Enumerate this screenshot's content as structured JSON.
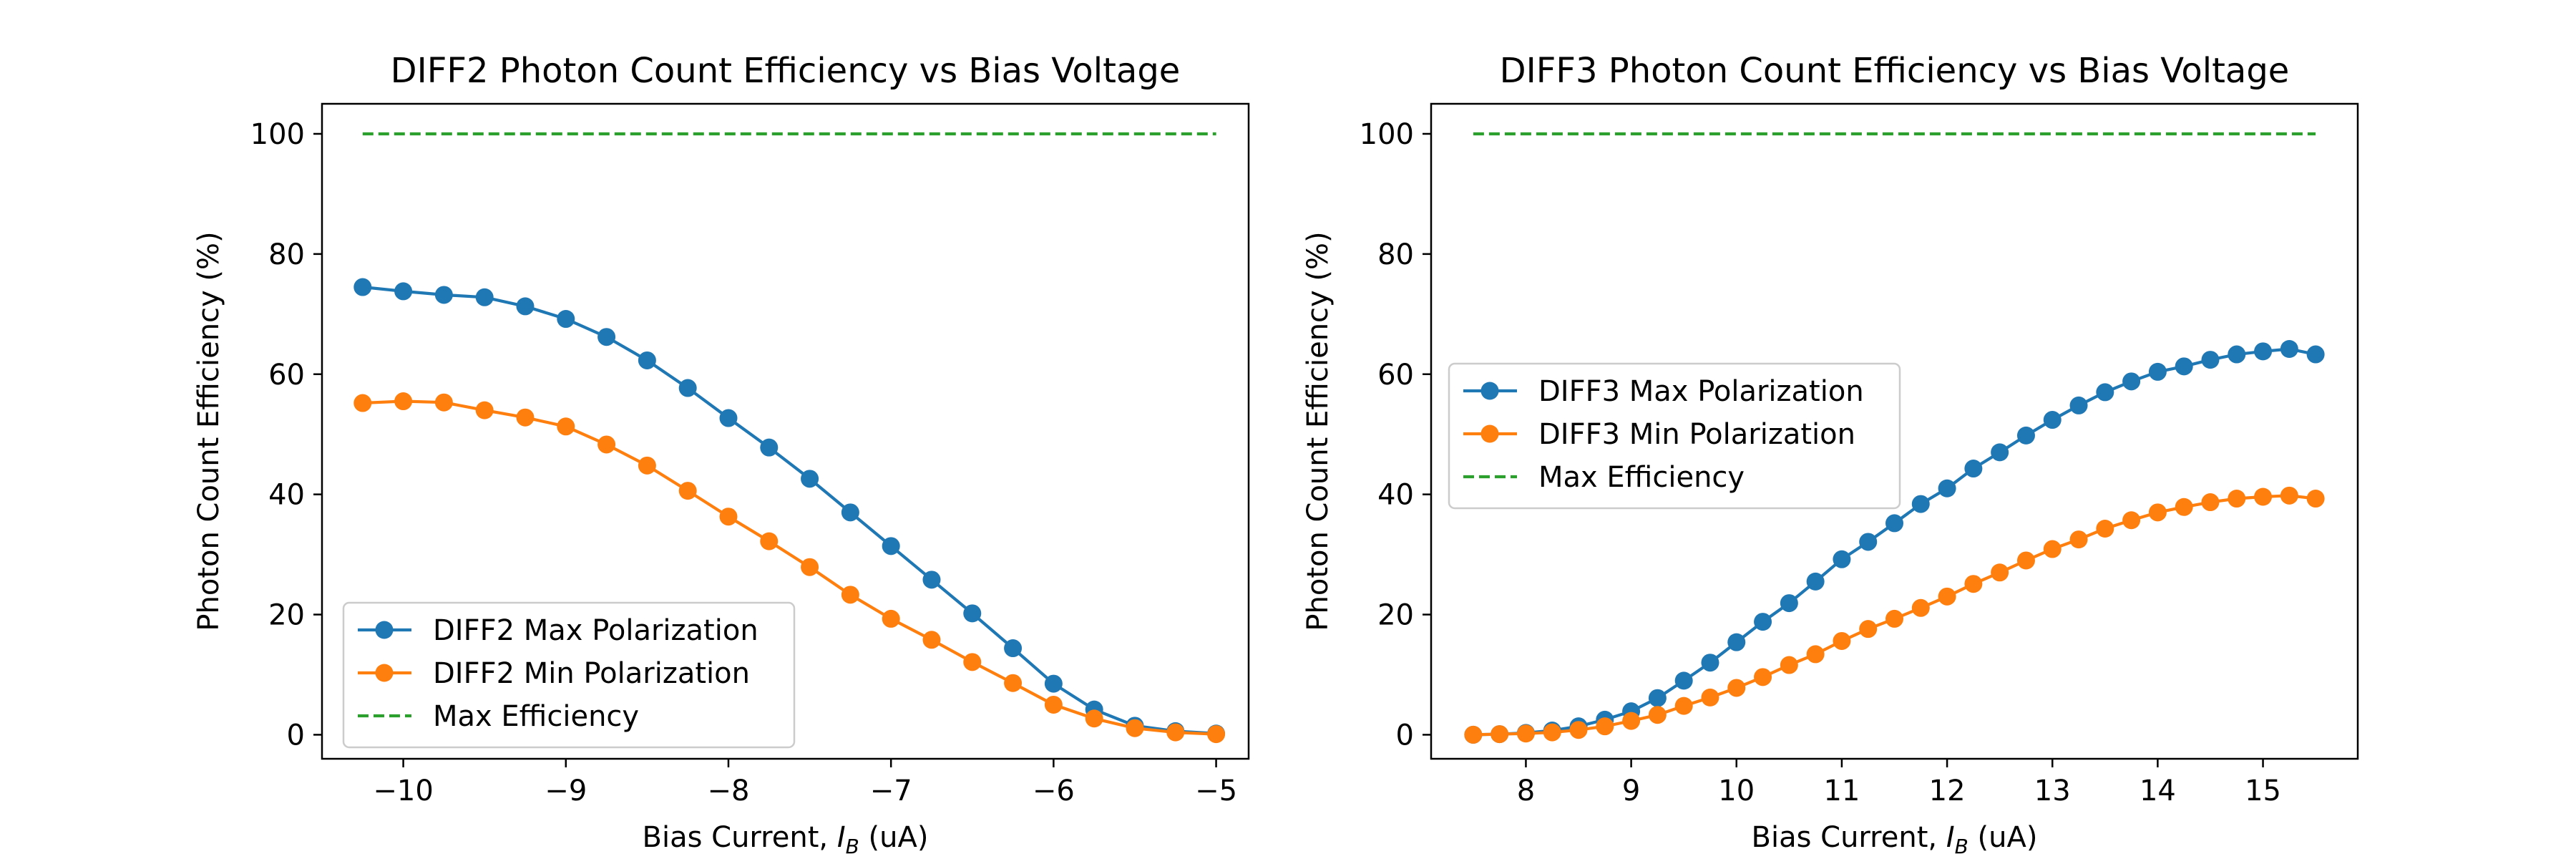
{
  "chart_data": [
    {
      "type": "line",
      "title": "DIFF2 Photon Count Efficiency vs Bias Voltage",
      "xlabel_prefix": "Bias Current, ",
      "xlabel_var": "I",
      "xlabel_sub": "B",
      "xlabel_suffix": " (uA)",
      "ylabel": "Photon Count Efficiency (%)",
      "xlim": [
        -10.5,
        -4.8
      ],
      "ylim": [
        -4,
        105
      ],
      "xticks": [
        -10,
        -9,
        -8,
        -7,
        -6,
        -5
      ],
      "xtick_labels": [
        "−10",
        "−9",
        "−8",
        "−7",
        "−6",
        "−5"
      ],
      "yticks": [
        0,
        20,
        40,
        60,
        80,
        100
      ],
      "ytick_labels": [
        "0",
        "20",
        "40",
        "60",
        "80",
        "100"
      ],
      "grid": false,
      "legend_position": "lower-left",
      "x": [
        -10.25,
        -10.0,
        -9.75,
        -9.5,
        -9.25,
        -9.0,
        -8.75,
        -8.5,
        -8.25,
        -8.0,
        -7.75,
        -7.5,
        -7.25,
        -7.0,
        -6.75,
        -6.5,
        -6.25,
        -6.0,
        -5.75,
        -5.5,
        -5.25,
        -5.0
      ],
      "series": [
        {
          "name": "DIFF2 Max Polarization",
          "color": "#1f77b4",
          "style": "solid-marker",
          "values": [
            74.5,
            73.8,
            73.2,
            72.8,
            71.3,
            69.2,
            66.2,
            62.3,
            57.7,
            52.7,
            47.8,
            42.6,
            37.0,
            31.4,
            25.8,
            20.2,
            14.4,
            8.5,
            4.2,
            1.5,
            0.6,
            0.2
          ]
        },
        {
          "name": "DIFF2 Min Polarization",
          "color": "#ff7f0e",
          "style": "solid-marker",
          "values": [
            55.2,
            55.5,
            55.3,
            54.0,
            52.8,
            51.3,
            48.3,
            44.8,
            40.6,
            36.3,
            32.2,
            27.9,
            23.3,
            19.3,
            15.8,
            12.1,
            8.6,
            5.0,
            2.7,
            1.1,
            0.4,
            0.1
          ]
        },
        {
          "name": "Max Efficiency",
          "color": "#2ca02c",
          "style": "dashed",
          "values": [
            100,
            100,
            100,
            100,
            100,
            100,
            100,
            100,
            100,
            100,
            100,
            100,
            100,
            100,
            100,
            100,
            100,
            100,
            100,
            100,
            100,
            100
          ]
        }
      ]
    },
    {
      "type": "line",
      "title": "DIFF3 Photon Count Efficiency vs Bias Voltage",
      "xlabel_prefix": "Bias Current, ",
      "xlabel_var": "I",
      "xlabel_sub": "B",
      "xlabel_suffix": " (uA)",
      "ylabel": "Photon Count Efficiency (%)",
      "xlim": [
        7.1,
        15.9
      ],
      "ylim": [
        -4,
        105
      ],
      "xticks": [
        8,
        9,
        10,
        11,
        12,
        13,
        14,
        15
      ],
      "xtick_labels": [
        "8",
        "9",
        "10",
        "11",
        "12",
        "13",
        "14",
        "15"
      ],
      "yticks": [
        0,
        20,
        40,
        60,
        80,
        100
      ],
      "ytick_labels": [
        "0",
        "20",
        "40",
        "60",
        "80",
        "100"
      ],
      "grid": false,
      "legend_position": "center-left",
      "x": [
        7.5,
        7.75,
        8.0,
        8.25,
        8.5,
        8.75,
        9.0,
        9.25,
        9.5,
        9.75,
        10.0,
        10.25,
        10.5,
        10.75,
        11.0,
        11.25,
        11.5,
        11.75,
        12.0,
        12.25,
        12.5,
        12.75,
        13.0,
        13.25,
        13.5,
        13.75,
        14.0,
        14.25,
        14.5,
        14.75,
        15.0,
        15.25,
        15.5
      ],
      "series": [
        {
          "name": "DIFF3 Max Polarization",
          "color": "#1f77b4",
          "style": "solid-marker",
          "values": [
            0.0,
            0.1,
            0.3,
            0.7,
            1.4,
            2.5,
            3.9,
            6.1,
            9.0,
            12.0,
            15.4,
            18.8,
            21.9,
            25.5,
            29.2,
            32.1,
            35.2,
            38.4,
            41.0,
            44.3,
            47.0,
            49.8,
            52.4,
            54.8,
            57.0,
            58.8,
            60.4,
            61.3,
            62.4,
            63.3,
            63.8,
            64.2,
            63.3
          ]
        },
        {
          "name": "DIFF3 Min Polarization",
          "color": "#ff7f0e",
          "style": "solid-marker",
          "values": [
            0.0,
            0.1,
            0.2,
            0.4,
            0.8,
            1.4,
            2.3,
            3.3,
            4.8,
            6.2,
            7.8,
            9.6,
            11.6,
            13.4,
            15.6,
            17.6,
            19.3,
            21.1,
            23.0,
            25.1,
            27.0,
            29.0,
            30.9,
            32.5,
            34.3,
            35.7,
            37.0,
            37.9,
            38.7,
            39.3,
            39.6,
            39.8,
            39.3
          ]
        },
        {
          "name": "Max Efficiency",
          "color": "#2ca02c",
          "style": "dashed",
          "values": [
            100,
            100,
            100,
            100,
            100,
            100,
            100,
            100,
            100,
            100,
            100,
            100,
            100,
            100,
            100,
            100,
            100,
            100,
            100,
            100,
            100,
            100,
            100,
            100,
            100,
            100,
            100,
            100,
            100,
            100,
            100,
            100,
            100
          ]
        }
      ]
    }
  ]
}
